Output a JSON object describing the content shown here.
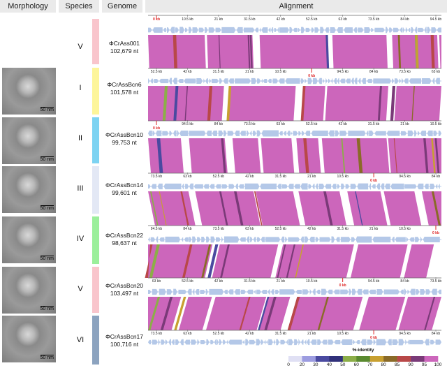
{
  "headers": {
    "morphology": "Morphology",
    "species": "Species",
    "genome": "Genome",
    "alignment": "Alignment"
  },
  "scale_label": "50 nm",
  "genomes": [
    {
      "species": "V",
      "name": "ΦCrAss001",
      "length": "102,679 nt",
      "color": "#f9c5cc",
      "ruler": [
        "0 kb",
        "10.5 kb",
        "21 kb",
        "31.5 kb",
        "42 kb",
        "52.5 kb",
        "63 kb",
        "73.5 kb",
        "84 kb",
        "94.5 kb"
      ],
      "zero_index": 0,
      "has_image": false
    },
    {
      "species": "I",
      "name": "ΦCrAssBcn6",
      "length": "101,578 nt",
      "color": "#fdf59a",
      "ruler": [
        "52.5 kb",
        "42 kb",
        "31.5 kb",
        "21 kb",
        "10.5 kb",
        "0 kb",
        "94.5 kb",
        "84 kb",
        "73.5 kb",
        "63 kb"
      ],
      "zero_index": 5,
      "has_image": true
    },
    {
      "species": "II",
      "name": "ΦCrAssBcn10",
      "length": "99,753 nt",
      "color": "#7dd3f2",
      "ruler": [
        "0 kb",
        "94.5 kb",
        "84 kb",
        "73.5 kb",
        "63 kb",
        "52.5 kb",
        "42 kb",
        "31.5 kb",
        "21 kb",
        "10.5 kb"
      ],
      "zero_index": 0,
      "has_image": true
    },
    {
      "species": "III",
      "name": "ΦCrAssBcn14",
      "length": "99,601 nt",
      "color": "#e3e8f5",
      "ruler": [
        "73.5 kb",
        "63 kb",
        "52.5 kb",
        "42 kb",
        "31.5 kb",
        "21 kb",
        "10.5 kb",
        "0 kb",
        "94.5 kb",
        "84 kb"
      ],
      "zero_index": 7,
      "has_image": true
    },
    {
      "species": "IV",
      "name": "ΦCrAssBcn22",
      "length": "98,637 nt",
      "color": "#9bef9b",
      "ruler": [
        "94.5 kb",
        "84 kb",
        "73.5 kb",
        "63 kb",
        "52.5 kb",
        "42 kb",
        "31.5 kb",
        "21 kb",
        "10.5 kb",
        "0 kb"
      ],
      "zero_index": 9,
      "has_image": true
    },
    {
      "species": "V",
      "name": "ΦCrAssBcn20",
      "length": "103,497 nt",
      "color": "#f9c5cc",
      "ruler": [
        "63 kb",
        "52.5 kb",
        "42 kb",
        "31.5 kb",
        "21 kb",
        "10.5 kb",
        "0 kb",
        "94.5 kb",
        "84 kb",
        "73.5 kb"
      ],
      "zero_index": 6,
      "has_image": true
    },
    {
      "species": "VI",
      "name": "ΦCrAssBcn17",
      "length": "100,716 nt",
      "color": "#8ca3bf",
      "ruler": [
        "73.5 kb",
        "63 kb",
        "52.5 kb",
        "42 kb",
        "31.5 kb",
        "21 kb",
        "10.5 kb",
        "0 kb",
        "94.5 kb",
        "84 kb"
      ],
      "zero_index": 7,
      "has_image": true
    }
  ],
  "legend": {
    "title": "%-identity",
    "ticks": [
      "0",
      "20",
      "30",
      "40",
      "50",
      "60",
      "70",
      "80",
      "85",
      "90",
      "95",
      "100"
    ],
    "colors": [
      "#e0e0f4",
      "#9c9ce0",
      "#4a4aa0",
      "#30307a",
      "#8cae48",
      "#5a8a30",
      "#c8a030",
      "#8a6a28",
      "#b84848",
      "#7a3a78",
      "#cc66bb"
    ]
  },
  "gene_color": "#b4c8e8",
  "match_color": "#cc66bb"
}
